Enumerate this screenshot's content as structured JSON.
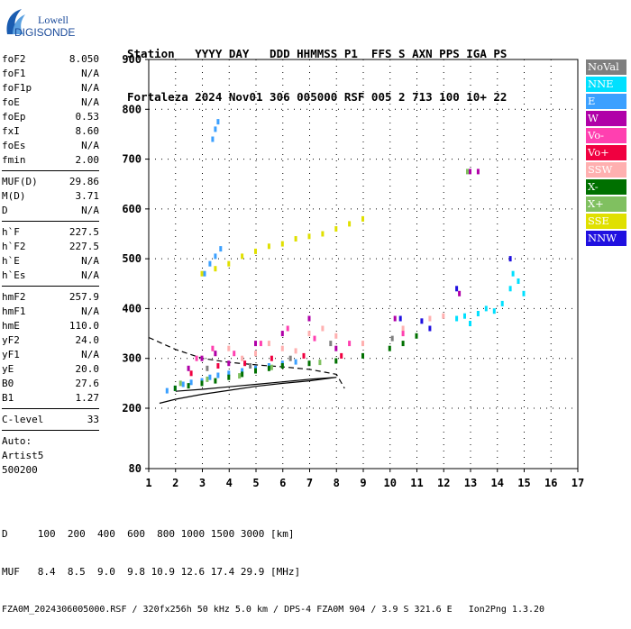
{
  "logo": {
    "line1": "Lowell",
    "line2": "DIGISONDE"
  },
  "header": {
    "line1": "Station   YYYY DAY   DDD HHMMSS P1  FFS S AXN PPS IGA PS",
    "line2": "Fortaleza 2024 Nov01 306 005000 RSF 005 2 713 100 10+ 22"
  },
  "sidebar": {
    "group1": [
      {
        "label": "foF2",
        "value": "8.050"
      },
      {
        "label": "foF1",
        "value": "N/A"
      },
      {
        "label": "foF1p",
        "value": "N/A"
      },
      {
        "label": "foE",
        "value": "N/A"
      },
      {
        "label": "foEp",
        "value": "0.53"
      },
      {
        "label": "fxI",
        "value": "8.60"
      },
      {
        "label": "foEs",
        "value": "N/A"
      },
      {
        "label": "fmin",
        "value": "2.00"
      }
    ],
    "group2": [
      {
        "label": "MUF(D)",
        "value": "29.86"
      },
      {
        "label": "M(D)",
        "value": "3.71"
      },
      {
        "label": "D",
        "value": "N/A"
      }
    ],
    "group3": [
      {
        "label": "h`F",
        "value": "227.5"
      },
      {
        "label": "h`F2",
        "value": "227.5"
      },
      {
        "label": "h`E",
        "value": "N/A"
      },
      {
        "label": "h`Es",
        "value": "N/A"
      }
    ],
    "group4": [
      {
        "label": "hmF2",
        "value": "257.9"
      },
      {
        "label": "hmF1",
        "value": "N/A"
      },
      {
        "label": "hmE",
        "value": "110.0"
      },
      {
        "label": "yF2",
        "value": "24.0"
      },
      {
        "label": "yF1",
        "value": "N/A"
      },
      {
        "label": "yE",
        "value": "20.0"
      },
      {
        "label": "B0",
        "value": "27.6"
      },
      {
        "label": "B1",
        "value": "1.27"
      }
    ],
    "clevel": {
      "label": "C-level",
      "value": "33"
    },
    "auto": [
      "Auto:",
      "Artist5",
      "500200"
    ]
  },
  "legend": [
    {
      "label": "NoVal",
      "color": "#7f7f7f"
    },
    {
      "label": "NNE",
      "color": "#00e0ff"
    },
    {
      "label": "E",
      "color": "#3ba0ff"
    },
    {
      "label": "W",
      "color": "#b000a8"
    },
    {
      "label": "Vo-",
      "color": "#ff40b0"
    },
    {
      "label": "Vo+",
      "color": "#f00040"
    },
    {
      "label": "SSW",
      "color": "#ffb0b0"
    },
    {
      "label": "X-",
      "color": "#007000"
    },
    {
      "label": "X+",
      "color": "#80c060"
    },
    {
      "label": "SSE",
      "color": "#e0e000"
    },
    {
      "label": "NNW",
      "color": "#2010e0"
    }
  ],
  "footer": {
    "line1": "D     100  200  400  600  800 1000 1500 3000 [km]",
    "line2": "MUF   8.4  8.5  9.0  9.8 10.9 12.6 17.4 29.9 [MHz]",
    "line3": "FZA0M_2024306005000.RSF / 320fx256h 50 kHz 5.0 km / DPS-4 FZA0M 904 / 3.9 S 321.6 E   Ion2Png 1.3.20"
  },
  "chart_data": {
    "type": "scatter",
    "title": "",
    "xlabel": "",
    "ylabel": "",
    "xlim": [
      1,
      17
    ],
    "ylim": [
      80,
      900
    ],
    "x_ticks": [
      1,
      2,
      3,
      4,
      5,
      6,
      7,
      8,
      9,
      10,
      11,
      12,
      13,
      14,
      15,
      16,
      17
    ],
    "y_ticks": [
      80,
      200,
      300,
      400,
      500,
      600,
      700,
      800,
      900
    ],
    "y_scale": "nonlinear (compressed below 200 km)",
    "grid": "dotted",
    "series": [
      {
        "name": "E",
        "points": [
          [
            1.7,
            235
          ],
          [
            2.0,
            240
          ],
          [
            2.3,
            248
          ],
          [
            2.6,
            252
          ],
          [
            3.0,
            255
          ],
          [
            3.3,
            262
          ],
          [
            3.6,
            266
          ],
          [
            4.0,
            270
          ],
          [
            4.5,
            275
          ],
          [
            5.0,
            280
          ],
          [
            5.5,
            285
          ],
          [
            6.0,
            290
          ],
          [
            6.5,
            293
          ],
          [
            3.1,
            470
          ],
          [
            3.3,
            490
          ],
          [
            3.5,
            505
          ],
          [
            3.7,
            520
          ],
          [
            3.4,
            740
          ],
          [
            3.5,
            760
          ],
          [
            3.6,
            775
          ]
        ]
      },
      {
        "name": "NNE",
        "points": [
          [
            12.5,
            380
          ],
          [
            12.8,
            385
          ],
          [
            13.0,
            370
          ],
          [
            13.3,
            390
          ],
          [
            13.6,
            400
          ],
          [
            13.9,
            395
          ],
          [
            14.2,
            410
          ],
          [
            14.5,
            440
          ],
          [
            14.6,
            470
          ],
          [
            14.8,
            455
          ],
          [
            15.0,
            430
          ]
        ]
      },
      {
        "name": "SSW",
        "points": [
          [
            3.0,
            300
          ],
          [
            3.5,
            310
          ],
          [
            4.0,
            320
          ],
          [
            4.5,
            300
          ],
          [
            5.0,
            310
          ],
          [
            5.5,
            330
          ],
          [
            6.0,
            320
          ],
          [
            6.5,
            315
          ],
          [
            7.0,
            350
          ],
          [
            7.5,
            360
          ],
          [
            8.0,
            345
          ],
          [
            9.0,
            330
          ],
          [
            10.5,
            360
          ],
          [
            11.5,
            380
          ],
          [
            12.0,
            385
          ]
        ]
      },
      {
        "name": "SSE",
        "points": [
          [
            3.0,
            470
          ],
          [
            3.5,
            480
          ],
          [
            4.0,
            490
          ],
          [
            4.5,
            505
          ],
          [
            5.0,
            515
          ],
          [
            5.5,
            525
          ],
          [
            6.0,
            530
          ],
          [
            6.5,
            540
          ],
          [
            7.0,
            545
          ],
          [
            7.5,
            550
          ],
          [
            8.0,
            560
          ],
          [
            8.5,
            570
          ],
          [
            9.0,
            580
          ]
        ]
      },
      {
        "name": "X-",
        "points": [
          [
            2.0,
            240
          ],
          [
            2.5,
            245
          ],
          [
            3.0,
            250
          ],
          [
            3.5,
            255
          ],
          [
            4.0,
            262
          ],
          [
            4.5,
            268
          ],
          [
            5.0,
            275
          ],
          [
            5.5,
            280
          ],
          [
            6.0,
            285
          ],
          [
            7.0,
            290
          ],
          [
            8.0,
            295
          ],
          [
            9.0,
            305
          ],
          [
            10.0,
            320
          ],
          [
            10.5,
            330
          ],
          [
            11.0,
            345
          ]
        ]
      },
      {
        "name": "W",
        "points": [
          [
            2.5,
            280
          ],
          [
            3.0,
            300
          ],
          [
            3.5,
            310
          ],
          [
            4.0,
            290
          ],
          [
            5.0,
            330
          ],
          [
            6.0,
            350
          ],
          [
            7.0,
            380
          ],
          [
            8.0,
            320
          ],
          [
            10.2,
            380
          ],
          [
            12.6,
            430
          ],
          [
            13.0,
            675
          ],
          [
            13.3,
            675
          ]
        ]
      },
      {
        "name": "Vo-",
        "points": [
          [
            2.8,
            300
          ],
          [
            3.4,
            320
          ],
          [
            4.2,
            310
          ],
          [
            5.2,
            330
          ],
          [
            6.2,
            360
          ],
          [
            7.2,
            340
          ],
          [
            8.5,
            330
          ],
          [
            10.5,
            350
          ]
        ]
      },
      {
        "name": "Vo+",
        "points": [
          [
            2.6,
            270
          ],
          [
            3.6,
            285
          ],
          [
            4.6,
            290
          ],
          [
            5.6,
            300
          ],
          [
            6.8,
            305
          ],
          [
            8.2,
            305
          ]
        ]
      },
      {
        "name": "NNW",
        "points": [
          [
            10.4,
            380
          ],
          [
            11.2,
            375
          ],
          [
            11.5,
            360
          ],
          [
            12.5,
            440
          ],
          [
            14.5,
            500
          ]
        ]
      },
      {
        "name": "X+",
        "points": [
          [
            2.2,
            250
          ],
          [
            3.2,
            258
          ],
          [
            4.4,
            265
          ],
          [
            5.6,
            282
          ],
          [
            7.4,
            292
          ],
          [
            12.9,
            675
          ]
        ]
      },
      {
        "name": "NoVal",
        "points": [
          [
            3.2,
            280
          ],
          [
            4.8,
            285
          ],
          [
            6.3,
            300
          ],
          [
            7.8,
            330
          ],
          [
            10.1,
            340
          ]
        ]
      }
    ],
    "profile_curves": "black solid and dashed electron-density profile lines from ~1 MHz to ~8 MHz, 200–380 km"
  }
}
